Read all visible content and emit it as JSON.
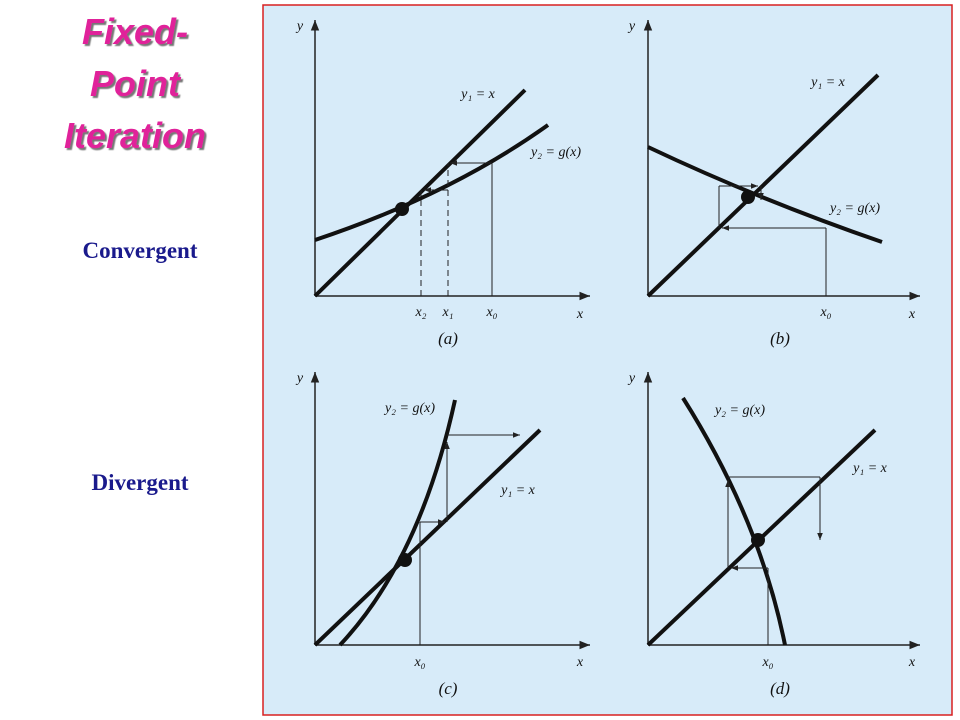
{
  "title": [
    "Fixed-",
    "Point",
    "Iteration"
  ],
  "row_labels": [
    "Convergent",
    "Divergent"
  ],
  "panels": [
    {
      "caption": "(a)",
      "y_axis": "y",
      "x_axis": "x",
      "line_label": "y₁ = x",
      "curve_label": "y₂ = g(x)",
      "x_marks": [
        "x₂",
        "x₁",
        "x₀"
      ]
    },
    {
      "caption": "(b)",
      "y_axis": "y",
      "x_axis": "x",
      "line_label": "y₁ = x",
      "curve_label": "y₂ = g(x)",
      "x_marks": [
        "x₀"
      ]
    },
    {
      "caption": "(c)",
      "y_axis": "y",
      "x_axis": "x",
      "line_label": "y₁ = x",
      "curve_label": "y₂ = g(x)",
      "x_marks": [
        "x₀"
      ]
    },
    {
      "caption": "(d)",
      "y_axis": "y",
      "x_axis": "x",
      "line_label": "y₁ = x",
      "curve_label": "y₂ = g(x)",
      "x_marks": [
        "x₀"
      ]
    }
  ]
}
